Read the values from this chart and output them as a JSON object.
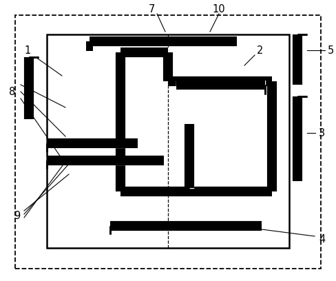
{
  "bg_color": "#ffffff",
  "line_color": "#000000",
  "fig_width": 4.88,
  "fig_height": 4.08,
  "dpi": 100
}
